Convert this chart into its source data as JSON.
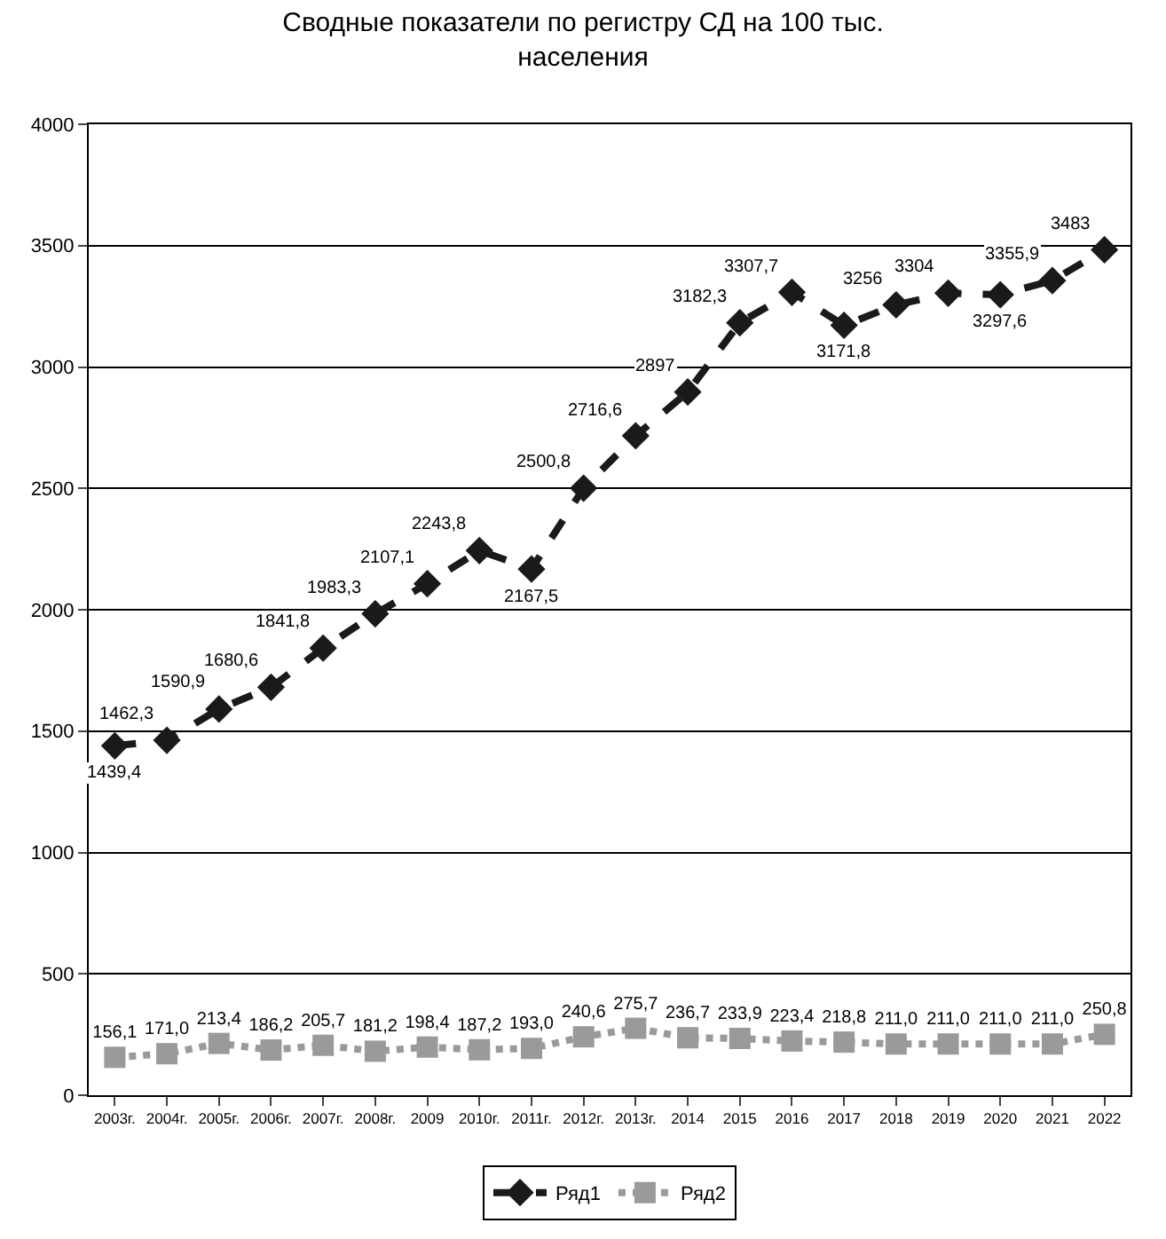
{
  "chart_data": {
    "type": "line",
    "title": "Сводные показатели по регистру СД на 100 тыс.\nнаселения",
    "categories": [
      "2003г.",
      "2004г.",
      "2005г.",
      "2006г.",
      "2007г.",
      "2008г.",
      "2009",
      "2010г.",
      "2011г.",
      "2012г.",
      "2013г.",
      "2014",
      "2015",
      "2016",
      "2017",
      "2018",
      "2019",
      "2020",
      "2021",
      "2022"
    ],
    "series": [
      {
        "name": "Ряд1",
        "color": "#1a1a1a",
        "marker": "diamond",
        "line_style": "dashed",
        "values": [
          1439.4,
          1462.3,
          1590.9,
          1680.6,
          1841.8,
          1983.3,
          2107.1,
          2243.8,
          2167.5,
          2500.8,
          2716.6,
          2897,
          3182.3,
          3307.7,
          3171.8,
          3256,
          3304,
          3297.6,
          3355.9,
          3483
        ],
        "value_labels": [
          "1439,4",
          "1462,3",
          "1590,9",
          "1680,6",
          "1841,8",
          "1983,3",
          "2107,1",
          "2243,8",
          "2167,5",
          "2500,8",
          "2716,6",
          "2897",
          "3182,3",
          "3307,7",
          "3171,8",
          "3256",
          "3304",
          "3297,6",
          "3355,9",
          "3483"
        ]
      },
      {
        "name": "Ряд2",
        "color": "#9a9a9a",
        "marker": "square",
        "line_style": "dotted",
        "values": [
          156.1,
          171.0,
          213.4,
          186.2,
          205.7,
          181.2,
          198.4,
          187.2,
          193.0,
          240.6,
          275.7,
          236.7,
          233.9,
          223.4,
          218.8,
          211.0,
          211.0,
          211.0,
          211.0,
          250.8
        ],
        "value_labels": [
          "156,1",
          "171,0",
          "213,4",
          "186,2",
          "205,7",
          "181,2",
          "198,4",
          "187,2",
          "193,0",
          "240,6",
          "275,7",
          "236,7",
          "233,9",
          "223,4",
          "218,8",
          "211,0",
          "211,0",
          "211,0",
          "211,0",
          "250,8"
        ]
      }
    ],
    "ylim": [
      0,
      4000
    ],
    "yticks": [
      0,
      500,
      1000,
      1500,
      2000,
      2500,
      3000,
      3500,
      4000
    ],
    "grid": "y",
    "legend": "bottom"
  }
}
